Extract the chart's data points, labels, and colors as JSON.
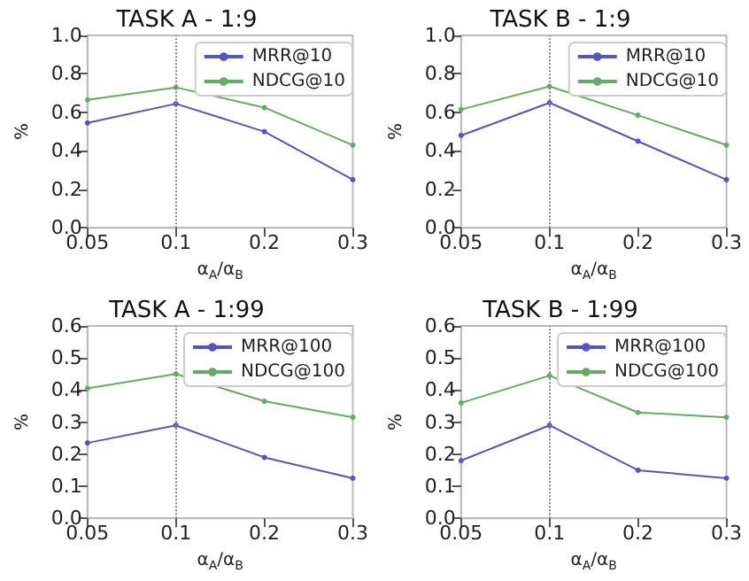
{
  "chart_data": [
    {
      "type": "line",
      "title": "TASK A - 1:9",
      "xlabel": "α$_{A}$/α$_{B}$",
      "ylabel": "%",
      "categories": [
        "0.05",
        "0.1",
        "0.2",
        "0.3"
      ],
      "series": [
        {
          "name": "MRR@10",
          "color": "#5555bb",
          "values": [
            0.545,
            0.645,
            0.5,
            0.25
          ]
        },
        {
          "name": "NDCG@10",
          "color": "#66aa66",
          "values": [
            0.665,
            0.73,
            0.625,
            0.43
          ]
        }
      ],
      "ylim": [
        0,
        1
      ],
      "yticks": [
        {
          "value": 0,
          "label": "0.0"
        },
        {
          "value": 0.2,
          "label": "0.2"
        },
        {
          "value": 0.4,
          "label": "0.4"
        },
        {
          "value": 0.6,
          "label": "0.6"
        },
        {
          "value": 0.8,
          "label": "0.8"
        },
        {
          "value": 1,
          "label": "1.0"
        }
      ],
      "ref_lines": [
        {
          "axis": "x",
          "value": "0.1",
          "color": "#888888",
          "line_style": "dotted"
        }
      ],
      "legend": "top right",
      "marker": "circle",
      "line_style": "solid",
      "grid": false
    },
    {
      "type": "line",
      "title": "TASK B - 1:9",
      "xlabel": "α$_{A}$/α$_{B}$",
      "ylabel": "%",
      "categories": [
        "0.05",
        "0.1",
        "0.2",
        "0.3"
      ],
      "series": [
        {
          "name": "MRR@10",
          "color": "#5555bb",
          "values": [
            0.48,
            0.65,
            0.45,
            0.25
          ]
        },
        {
          "name": "NDCG@10",
          "color": "#66aa66",
          "values": [
            0.615,
            0.735,
            0.585,
            0.43
          ]
        }
      ],
      "ylim": [
        0,
        1
      ],
      "yticks": [
        {
          "value": 0,
          "label": "0.0"
        },
        {
          "value": 0.2,
          "label": "0.2"
        },
        {
          "value": 0.4,
          "label": "0.4"
        },
        {
          "value": 0.6,
          "label": "0.6"
        },
        {
          "value": 0.8,
          "label": "0.8"
        },
        {
          "value": 1,
          "label": "1.0"
        }
      ],
      "ref_lines": [
        {
          "axis": "x",
          "value": "0.1",
          "color": "#888888",
          "line_style": "dotted"
        }
      ],
      "legend": "top right",
      "marker": "circle",
      "line_style": "solid",
      "grid": false
    },
    {
      "type": "line",
      "title": "TASK A - 1:99",
      "xlabel": "α$_{A}$/α$_{B}$",
      "ylabel": "%",
      "categories": [
        "0.05",
        "0.1",
        "0.2",
        "0.3"
      ],
      "series": [
        {
          "name": "MRR@100",
          "color": "#5555bb",
          "values": [
            0.235,
            0.29,
            0.19,
            0.125
          ]
        },
        {
          "name": "NDCG@100",
          "color": "#66aa66",
          "values": [
            0.405,
            0.45,
            0.365,
            0.315
          ]
        }
      ],
      "ylim": [
        0,
        0.6
      ],
      "yticks": [
        {
          "value": 0,
          "label": "0.0"
        },
        0.1,
        0.2,
        0.3,
        0.4,
        0.5,
        0.6
      ],
      "ref_lines": [
        {
          "axis": "x",
          "value": "0.1",
          "color": "#888888",
          "line_style": "dotted"
        }
      ],
      "legend": "top right",
      "marker": "circle",
      "line_style": "solid",
      "grid": false
    },
    {
      "type": "line",
      "title": "TASK B - 1:99",
      "xlabel": "α$_{A}$/α$_{B}$",
      "ylabel": "%",
      "categories": [
        "0.05",
        "0.1",
        "0.2",
        "0.3"
      ],
      "series": [
        {
          "name": "MRR@100",
          "color": "#5555bb",
          "values": [
            0.18,
            0.29,
            0.15,
            0.125
          ]
        },
        {
          "name": "NDCG@100",
          "color": "#66aa66",
          "values": [
            0.36,
            0.445,
            0.33,
            0.315
          ]
        }
      ],
      "ylim": [
        0,
        0.6
      ],
      "yticks": [
        {
          "value": 0,
          "label": "0.0"
        },
        0.1,
        0.2,
        0.3,
        0.4,
        0.5,
        0.6
      ],
      "ref_lines": [
        {
          "axis": "x",
          "value": "0.1",
          "color": "#888888",
          "line_style": "dotted"
        }
      ],
      "legend": "top right",
      "marker": "circle",
      "line_style": "solid",
      "grid": false
    }
  ]
}
